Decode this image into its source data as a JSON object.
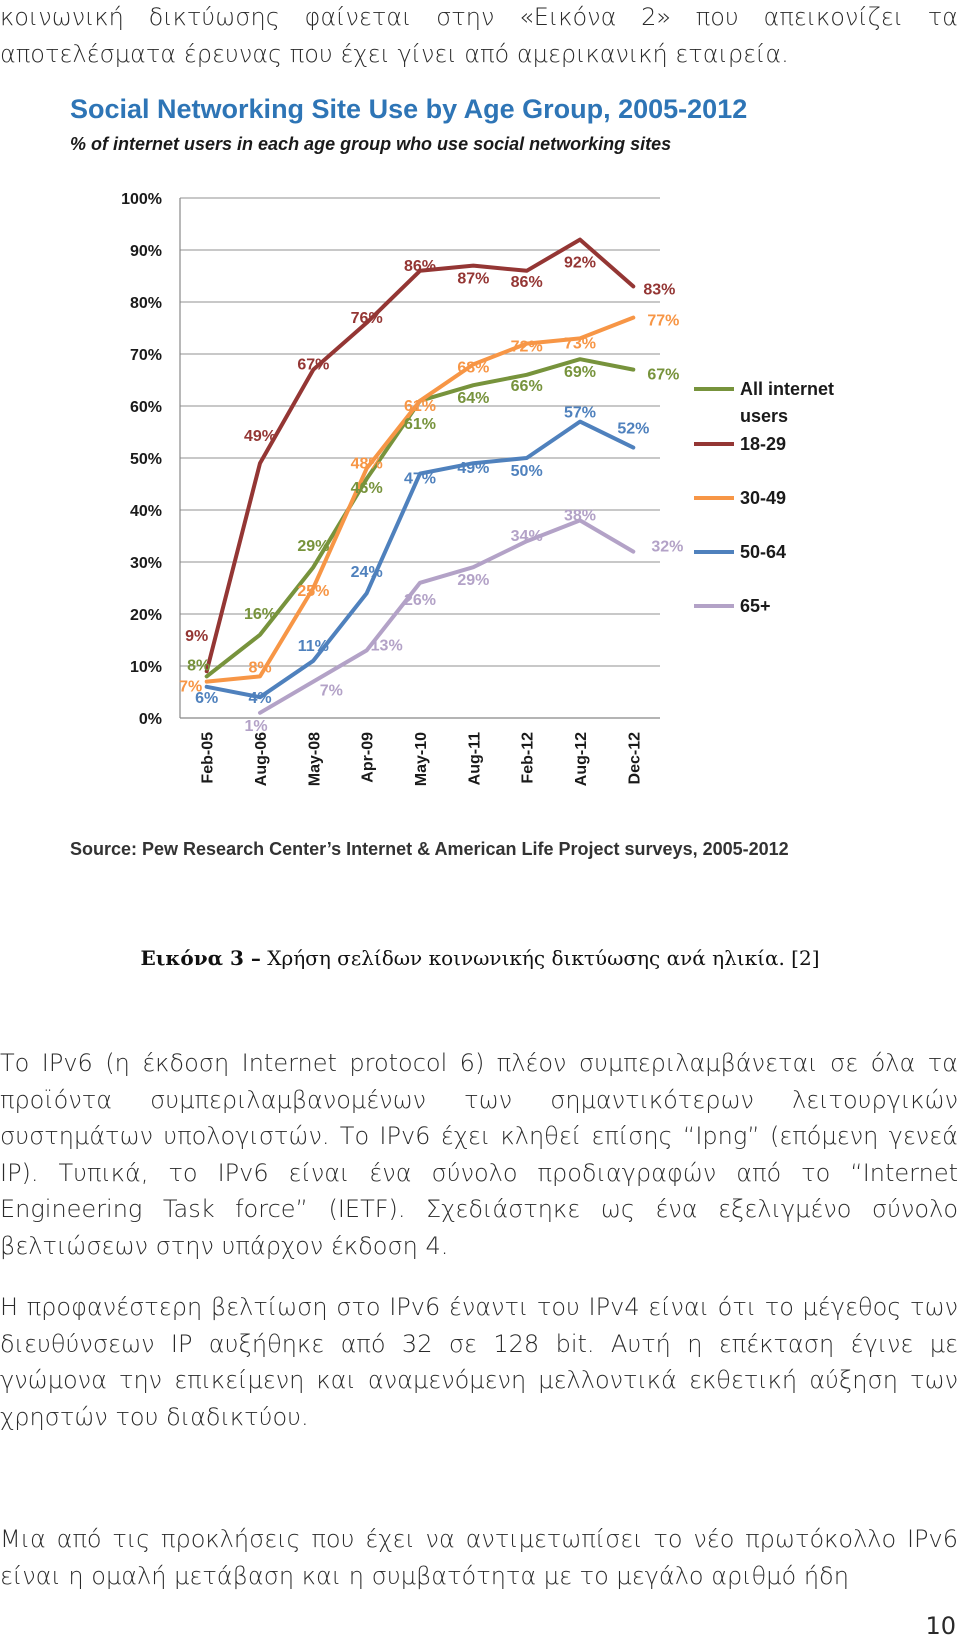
{
  "document": {
    "intro_paragraph": "κοινωνική δικτύωσης φαίνεται στην «Εικόνα 2» που απεικονίζει τα αποτελέσματα έρευνας που έχει γίνει από αμερικανική εταιρεία.",
    "figure_caption": {
      "label": "Εικόνα 3 –",
      "text": "Χρήση σελίδων κοινωνικής δικτύωσης ανά ηλικία.",
      "reference": "[2]"
    },
    "paragraph_ipv6": "Το IPv6 (η έκδοση Internet protocol 6) πλέον συμπεριλαμβάνεται σε όλα τα προϊόντα συμπεριλαμβανομένων των σημαντικότερων λειτουργικών συστημάτων υπολογιστών. Το IPv6 έχει κληθεί επίσης “Ipng” (επόμενη γενεά IP). Τυπικά, το IPv6 είναι ένα σύνολο προδιαγραφών από το “Internet Engineering Task force” (IETF). Σχεδιάστηκε ως ένα εξελιγμένο σύνολο βελτιώσεων στην υπάρχον έκδοση 4.",
    "paragraph_improvement": "Η προφανέστερη βελτίωση στο IPv6 έναντι του IPv4 είναι ότι το μέγεθος των διευθύνσεων IP αυξήθηκε από 32 σε 128 bit. Αυτή η επέκταση έγινε με γνώμονα την επικείμενη και αναμενόμενη μελλοντικά εκθετική αύξηση των χρηστών του διαδικτύου.",
    "paragraph_challenges": "Μια από τις προκλήσεις που έχει να αντιμετωπίσει το νέο πρωτόκολλο IPv6 είναι η ομαλή μετάβαση και η συμβατότητα με το μεγάλο αριθμό ήδη",
    "page_number": "10"
  },
  "chart_data": {
    "type": "line",
    "title": "Social Networking Site Use by Age Group, 2005-2012",
    "subtitle": "% of internet users in each age group who use social networking sites",
    "source": "Source: Pew Research Center’s Internet & American Life Project surveys, 2005-2012",
    "categories": [
      "Feb-05",
      "Aug-06",
      "May-08",
      "Apr-09",
      "May-10",
      "Aug-11",
      "Feb-12",
      "Aug-12",
      "Dec-12"
    ],
    "yticks": [
      "0%",
      "10%",
      "20%",
      "30%",
      "40%",
      "50%",
      "60%",
      "70%",
      "80%",
      "90%",
      "100%"
    ],
    "ylim": [
      0,
      100
    ],
    "grid": true,
    "legend_position": "right",
    "title_color": "#2e75b6",
    "series": [
      {
        "name": "All internet users",
        "color": "#77933c",
        "values": [
          8,
          16,
          29,
          46,
          61,
          64,
          66,
          69,
          67
        ],
        "labels": [
          "8%",
          "16%",
          "29%",
          "46%",
          "61%",
          "64%",
          "66%",
          "69%",
          "67%"
        ]
      },
      {
        "name": "18-29",
        "color": "#943634",
        "values": [
          9,
          49,
          67,
          76,
          86,
          87,
          86,
          92,
          83
        ],
        "labels": [
          "9%",
          "49%",
          "67%",
          "76%",
          "86%",
          "87%",
          "86%",
          "92%",
          "83%"
        ]
      },
      {
        "name": "30-49",
        "color": "#f79646",
        "values": [
          7,
          8,
          25,
          48,
          61,
          68,
          72,
          73,
          77
        ],
        "labels": [
          "7%",
          "8%",
          "25%",
          "48%",
          "61%",
          "68%",
          "72%",
          "73%",
          "77%"
        ]
      },
      {
        "name": "50-64",
        "color": "#4f81bd",
        "values": [
          6,
          4,
          11,
          24,
          47,
          49,
          50,
          57,
          52
        ],
        "labels": [
          "6%",
          "4%",
          "11%",
          "24%",
          "47%",
          "49%",
          "50%",
          "57%",
          "52%"
        ]
      },
      {
        "name": "65+",
        "color": "#b3a2c7",
        "values": [
          null,
          1,
          7,
          13,
          26,
          29,
          34,
          38,
          32
        ],
        "labels": [
          "",
          "1%",
          "7%",
          "13%",
          "26%",
          "29%",
          "34%",
          "38%",
          "32%"
        ]
      }
    ]
  }
}
